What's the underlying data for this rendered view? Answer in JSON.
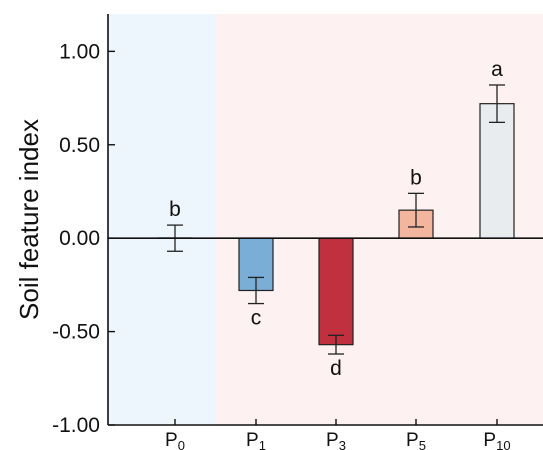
{
  "chart_data": {
    "type": "bar",
    "ylabel": "Soil feature index",
    "ylim": [
      -1.0,
      1.2
    ],
    "yticks": [
      -1.0,
      -0.5,
      0.0,
      0.5,
      1.0
    ],
    "ytick_labels": [
      "-1.00",
      "-0.50",
      "0.00",
      "0.50",
      "1.00"
    ],
    "categories": [
      {
        "main": "P",
        "sub": "0"
      },
      {
        "main": "P",
        "sub": "1"
      },
      {
        "main": "P",
        "sub": "3"
      },
      {
        "main": "P",
        "sub": "5"
      },
      {
        "main": "P",
        "sub": "10"
      }
    ],
    "values": [
      0.0,
      -0.28,
      -0.57,
      0.15,
      0.72
    ],
    "errors": [
      0.07,
      0.07,
      0.05,
      0.09,
      0.1
    ],
    "significance_letters": [
      "b",
      "c",
      "d",
      "b",
      "a"
    ],
    "bar_colors": [
      "#ffffff",
      "#7aaed6",
      "#c0303f",
      "#f4b59e",
      "#e9ecef"
    ],
    "background_regions": [
      {
        "from_category": 0,
        "to_category": 0,
        "color": "#eef6fd"
      },
      {
        "from_category": 1,
        "to_category": 4,
        "color": "#fdf1f1"
      }
    ],
    "grid": false,
    "zero_line": true
  }
}
